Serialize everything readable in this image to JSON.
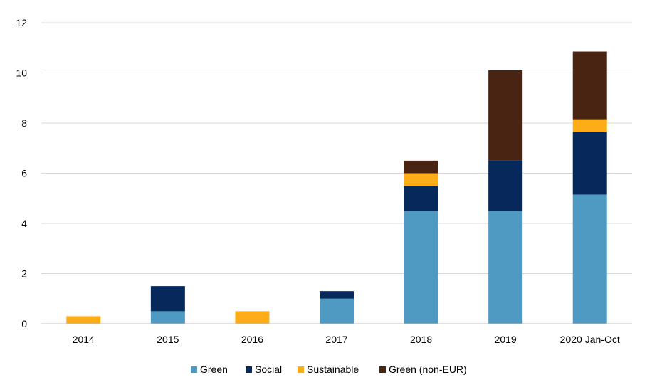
{
  "chart_data": {
    "type": "bar",
    "stacked": true,
    "categories": [
      "2014",
      "2015",
      "2016",
      "2017",
      "2018",
      "2019",
      "2020 Jan-Oct"
    ],
    "series": [
      {
        "name": "Green",
        "color": "#4f9ac3",
        "values": [
          0,
          0.5,
          0,
          1.0,
          4.5,
          4.5,
          5.15
        ]
      },
      {
        "name": "Social",
        "color": "#06285a",
        "values": [
          0,
          1.0,
          0,
          0.3,
          1.0,
          2.0,
          2.5
        ]
      },
      {
        "name": "Sustainable",
        "color": "#fcad18",
        "values": [
          0.3,
          0,
          0.5,
          0,
          0.5,
          0,
          0.5
        ]
      },
      {
        "name": "Green (non-EUR)",
        "color": "#4a2413",
        "values": [
          0,
          0,
          0,
          0,
          0.5,
          3.6,
          2.7
        ]
      }
    ],
    "yticks": [
      0,
      2,
      4,
      6,
      8,
      10,
      12
    ],
    "ylim": [
      0,
      12
    ],
    "grid": true,
    "legend_position": "bottom",
    "title": "",
    "xlabel": "",
    "ylabel": ""
  }
}
